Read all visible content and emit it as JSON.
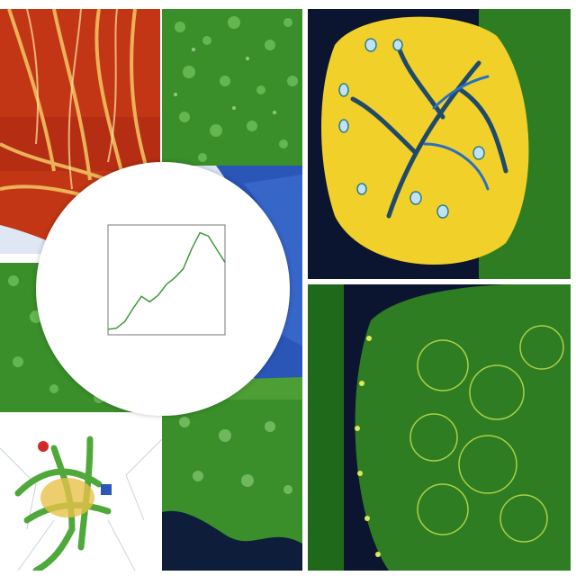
{
  "chart_data": {
    "type": "line",
    "title": "",
    "xlabel": "",
    "ylabel": "",
    "x": [
      0,
      0.5,
      1.0,
      1.5,
      2.0,
      2.5,
      3.0,
      3.5,
      4.0,
      4.5,
      5.0,
      5.5,
      6.0,
      6.5,
      7.0
    ],
    "series": [
      {
        "values": [
          0.05,
          0.06,
          0.12,
          0.24,
          0.35,
          0.3,
          0.36,
          0.46,
          0.52,
          0.6,
          0.78,
          0.93,
          0.9,
          0.78,
          0.66
        ]
      }
    ],
    "xlim": [
      0,
      7
    ],
    "ylim": [
      0,
      1
    ],
    "grid": false,
    "line_color": "#3f9a3a"
  },
  "scene": {
    "panels": [
      {
        "name": "red-vein-panel",
        "colors": [
          "#c23616",
          "#e8b04a"
        ]
      },
      {
        "name": "green-texture-panel",
        "colors": [
          "#3f8f2c",
          "#7cc36a"
        ]
      },
      {
        "name": "yellow-leaf-cell-panel",
        "colors": [
          "#f2d02a",
          "#1f5fa6"
        ]
      },
      {
        "name": "green-cell-membrane-panel",
        "colors": [
          "#2f7d22",
          "#b7d94a"
        ]
      },
      {
        "name": "white-root-panel",
        "colors": [
          "#ffffff",
          "#4fa83a"
        ]
      },
      {
        "name": "blue-sphere-panel",
        "colors": [
          "#2a56b8",
          "#d7e3f8"
        ]
      }
    ]
  }
}
